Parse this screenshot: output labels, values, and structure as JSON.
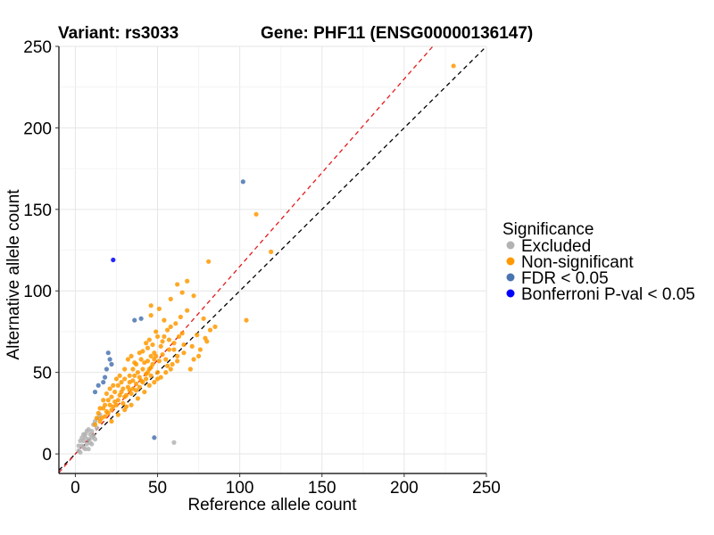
{
  "chart_data": {
    "type": "scatter",
    "title_left": "Variant: rs3033",
    "title_right": "Gene: PHF11 (ENSG00000136147)",
    "xlabel": "Reference allele count",
    "ylabel": "Alternative allele count",
    "xlim": [
      -10,
      250
    ],
    "ylim": [
      -12,
      250
    ],
    "xticks": [
      0,
      50,
      100,
      150,
      200,
      250
    ],
    "yticks": [
      0,
      50,
      100,
      150,
      200,
      250
    ],
    "grid": true,
    "reference_lines": [
      {
        "name": "identity",
        "slope": 1.0,
        "intercept": 0,
        "color": "#000000",
        "dash": true
      },
      {
        "name": "fitted-ratio",
        "slope": 1.15,
        "intercept": 0,
        "color": "#e41a1c",
        "dash": true
      }
    ],
    "legend": {
      "title": "Significance",
      "position": "right",
      "entries": [
        {
          "label": "Excluded",
          "color": "#b3b3b3"
        },
        {
          "label": "Non-significant",
          "color": "#ff9900"
        },
        {
          "label": "FDR < 0.05",
          "color": "#4a74b0"
        },
        {
          "label": "Bonferroni P-val < 0.05",
          "color": "#0000ff"
        }
      ]
    },
    "series": [
      {
        "name": "Excluded",
        "color": "#b3b3b3",
        "points": [
          [
            2,
            2
          ],
          [
            3,
            1
          ],
          [
            4,
            5
          ],
          [
            5,
            8
          ],
          [
            6,
            10
          ],
          [
            7,
            6
          ],
          [
            8,
            9
          ],
          [
            9,
            12
          ],
          [
            10,
            14
          ],
          [
            11,
            18
          ],
          [
            12,
            20
          ],
          [
            3,
            8
          ],
          [
            5,
            4
          ],
          [
            6,
            12
          ],
          [
            8,
            3
          ],
          [
            9,
            7
          ],
          [
            10,
            6
          ],
          [
            11,
            11
          ],
          [
            13,
            16
          ],
          [
            7,
            14
          ],
          [
            4,
            10
          ],
          [
            14,
            22
          ],
          [
            12,
            9
          ],
          [
            15,
            24
          ],
          [
            60,
            7
          ],
          [
            2,
            5
          ],
          [
            6,
            3
          ],
          [
            8,
            15
          ],
          [
            5,
            12
          ],
          [
            10,
            10
          ]
        ]
      },
      {
        "name": "Non-significant",
        "color": "#ff9900",
        "points": [
          [
            230,
            238
          ],
          [
            110,
            147
          ],
          [
            119,
            124
          ],
          [
            81,
            118
          ],
          [
            104,
            82
          ],
          [
            68,
            106
          ],
          [
            65,
            99
          ],
          [
            62,
            104
          ],
          [
            72,
            97
          ],
          [
            58,
            95
          ],
          [
            51,
            89
          ],
          [
            68,
            88
          ],
          [
            78,
            83
          ],
          [
            85,
            78
          ],
          [
            58,
            78
          ],
          [
            46,
            91
          ],
          [
            54,
            82
          ],
          [
            74,
            73
          ],
          [
            80,
            69
          ],
          [
            66,
            67
          ],
          [
            62,
            60
          ],
          [
            56,
            54
          ],
          [
            70,
            52
          ],
          [
            75,
            60
          ],
          [
            49,
            60
          ],
          [
            45,
            52
          ],
          [
            40,
            45
          ],
          [
            35,
            40
          ],
          [
            30,
            35
          ],
          [
            25,
            30
          ],
          [
            20,
            25
          ],
          [
            15,
            20
          ],
          [
            12,
            18
          ],
          [
            38,
            50
          ],
          [
            42,
            56
          ],
          [
            28,
            38
          ],
          [
            33,
            44
          ],
          [
            48,
            62
          ],
          [
            52,
            66
          ],
          [
            55,
            58
          ],
          [
            36,
            48
          ],
          [
            44,
            50
          ],
          [
            47,
            55
          ],
          [
            50,
            50
          ],
          [
            53,
            61
          ],
          [
            57,
            64
          ],
          [
            60,
            68
          ],
          [
            63,
            72
          ],
          [
            26,
            33
          ],
          [
            31,
            29
          ],
          [
            22,
            27
          ],
          [
            18,
            23
          ],
          [
            24,
            32
          ],
          [
            27,
            36
          ],
          [
            29,
            40
          ],
          [
            32,
            41
          ],
          [
            34,
            37
          ],
          [
            37,
            43
          ],
          [
            39,
            47
          ],
          [
            41,
            44
          ],
          [
            43,
            49
          ],
          [
            46,
            48
          ],
          [
            21,
            30
          ],
          [
            16,
            22
          ],
          [
            19,
            26
          ],
          [
            23,
            29
          ],
          [
            48,
            44
          ],
          [
            52,
            47
          ],
          [
            58,
            52
          ],
          [
            62,
            57
          ],
          [
            66,
            62
          ],
          [
            71,
            66
          ],
          [
            46,
            85
          ],
          [
            49,
            75
          ],
          [
            45,
            70
          ],
          [
            44,
            65
          ],
          [
            40,
            58
          ],
          [
            37,
            55
          ],
          [
            35,
            52
          ],
          [
            33,
            48
          ],
          [
            30,
            46
          ],
          [
            28,
            44
          ],
          [
            26,
            42
          ],
          [
            24,
            38
          ],
          [
            22,
            35
          ],
          [
            20,
            33
          ],
          [
            18,
            30
          ],
          [
            17,
            28
          ],
          [
            14,
            25
          ],
          [
            13,
            22
          ],
          [
            72,
            58
          ],
          [
            76,
            64
          ],
          [
            79,
            71
          ],
          [
            82,
            76
          ],
          [
            54,
            72
          ],
          [
            57,
            70
          ],
          [
            61,
            80
          ],
          [
            64,
            84
          ],
          [
            50,
            72
          ],
          [
            56,
            76
          ],
          [
            60,
            64
          ],
          [
            65,
            74
          ],
          [
            48,
            58
          ],
          [
            36,
            56
          ],
          [
            34,
            60
          ],
          [
            32,
            58
          ],
          [
            30,
            52
          ],
          [
            27,
            48
          ],
          [
            25,
            46
          ],
          [
            23,
            42
          ],
          [
            21,
            40
          ],
          [
            19,
            37
          ],
          [
            17,
            33
          ],
          [
            15,
            28
          ],
          [
            42,
            38
          ],
          [
            38,
            34
          ],
          [
            34,
            30
          ],
          [
            30,
            27
          ],
          [
            26,
            24
          ],
          [
            22,
            20
          ],
          [
            45,
            42
          ],
          [
            50,
            46
          ],
          [
            55,
            50
          ],
          [
            59,
            55
          ],
          [
            41,
            63
          ],
          [
            43,
            68
          ],
          [
            39,
            62
          ],
          [
            47,
            67
          ],
          [
            53,
            69
          ],
          [
            46,
            60
          ],
          [
            51,
            57
          ],
          [
            29,
            31
          ],
          [
            31,
            36
          ],
          [
            33,
            39
          ],
          [
            35,
            45
          ],
          [
            37,
            39
          ],
          [
            39,
            41
          ],
          [
            41,
            52
          ],
          [
            43,
            46
          ],
          [
            44,
            57
          ],
          [
            46,
            53
          ]
        ]
      },
      {
        "name": "FDR < 0.05",
        "color": "#4a74b0",
        "points": [
          [
            102,
            167
          ],
          [
            40,
            83
          ],
          [
            36,
            82
          ],
          [
            20,
            62
          ],
          [
            22,
            55
          ],
          [
            18,
            47
          ],
          [
            14,
            42
          ],
          [
            19,
            52
          ],
          [
            21,
            58
          ],
          [
            48,
            10
          ],
          [
            12,
            38
          ],
          [
            17,
            44
          ]
        ]
      },
      {
        "name": "Bonferroni P-val < 0.05",
        "color": "#0000ff",
        "points": [
          [
            23,
            119
          ]
        ]
      }
    ]
  }
}
